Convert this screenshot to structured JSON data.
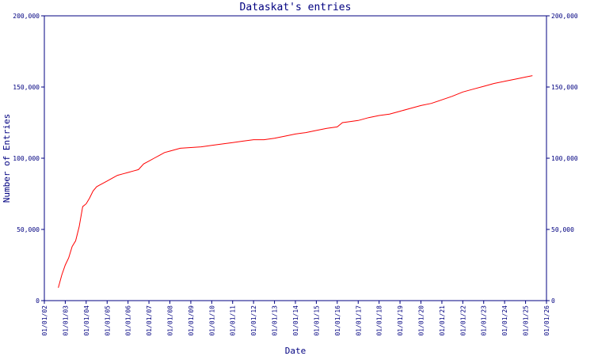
{
  "chart_data": {
    "type": "line",
    "title": "Dataskat's entries",
    "xlabel": "Date",
    "ylabel": "Number of Entries",
    "xlim": [
      "2002-01-01",
      "2026-01-01"
    ],
    "ylim": [
      0,
      200000
    ],
    "x_ticks": [
      "01/01/02",
      "01/01/03",
      "01/01/04",
      "01/01/05",
      "01/01/06",
      "01/01/07",
      "01/01/08",
      "01/01/09",
      "01/01/10",
      "01/01/11",
      "01/01/12",
      "01/01/13",
      "01/01/14",
      "01/01/15",
      "01/01/16",
      "01/01/17",
      "01/01/18",
      "01/01/19",
      "01/01/20",
      "01/01/21",
      "01/01/22",
      "01/01/23",
      "01/01/24",
      "01/01/25",
      "01/01/26"
    ],
    "y_ticks": [
      "0",
      "50,000",
      "100,000",
      "150,000",
      "200,000"
    ],
    "y_tick_values": [
      0,
      50000,
      100000,
      150000,
      200000
    ],
    "grid": false,
    "colors": {
      "axis": "#000080",
      "line": "#ff0000",
      "background": "#ffffff"
    },
    "series": [
      {
        "x": [
          "2002-09-01",
          "2002-11-01",
          "2003-01-01",
          "2003-03-01",
          "2003-05-01",
          "2003-07-01",
          "2003-09-01",
          "2003-11-01",
          "2004-01-01",
          "2004-03-01",
          "2004-05-01",
          "2004-07-01",
          "2004-10-01",
          "2005-01-01",
          "2005-04-01",
          "2005-07-01",
          "2005-10-01",
          "2006-01-01",
          "2006-04-01",
          "2006-07-01",
          "2006-10-01",
          "2007-01-01",
          "2007-04-01",
          "2007-07-01",
          "2007-10-01",
          "2008-01-01",
          "2008-07-01",
          "2009-01-01",
          "2009-07-01",
          "2010-01-01",
          "2010-07-01",
          "2011-01-01",
          "2011-07-01",
          "2012-01-01",
          "2012-07-01",
          "2013-01-01",
          "2013-07-01",
          "2014-01-01",
          "2014-07-01",
          "2015-01-01",
          "2015-07-01",
          "2016-01-01",
          "2016-04-01",
          "2016-07-01",
          "2017-01-01",
          "2017-07-01",
          "2018-01-01",
          "2018-07-01",
          "2019-01-01",
          "2019-07-01",
          "2020-01-01",
          "2020-07-01",
          "2021-01-01",
          "2021-07-01",
          "2022-01-01",
          "2022-07-01",
          "2023-01-01",
          "2023-07-01",
          "2024-01-01",
          "2024-07-01",
          "2025-01-01",
          "2025-05-01"
        ],
        "values": [
          9000,
          18000,
          25000,
          30000,
          38000,
          42000,
          52000,
          66000,
          68000,
          72000,
          77000,
          80000,
          82000,
          84000,
          86000,
          88000,
          89000,
          90000,
          91000,
          92000,
          96000,
          98000,
          100000,
          102000,
          104000,
          105000,
          107000,
          107500,
          108000,
          109000,
          110000,
          111000,
          112000,
          113000,
          113000,
          114000,
          115500,
          117000,
          118000,
          119500,
          121000,
          122000,
          125000,
          125500,
          126500,
          128500,
          130000,
          131000,
          133000,
          135000,
          137000,
          138500,
          141000,
          143500,
          146500,
          148500,
          150500,
          152500,
          154000,
          155500,
          157000,
          158000
        ]
      }
    ]
  }
}
